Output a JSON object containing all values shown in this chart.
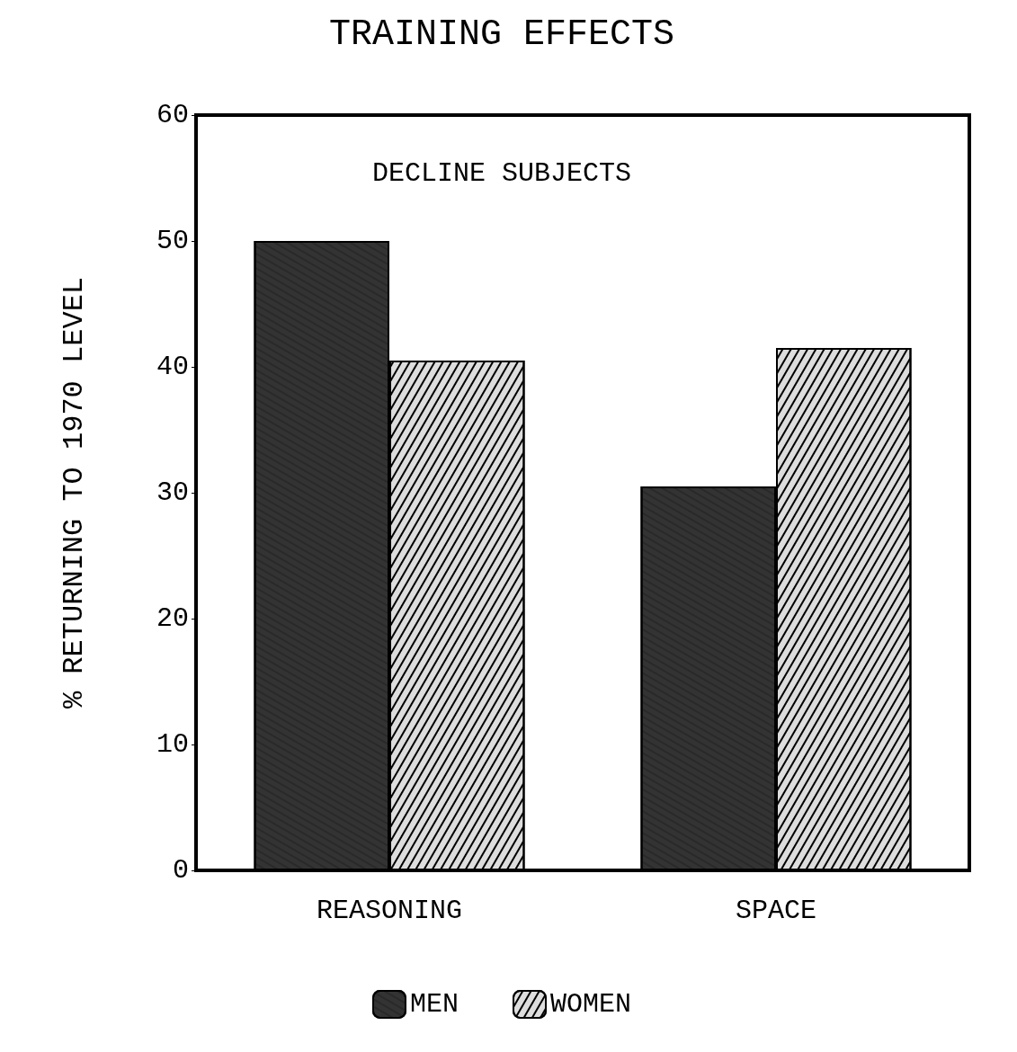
{
  "chart_data": {
    "type": "bar",
    "title": "TRAINING EFFECTS",
    "subtitle": "DECLINE SUBJECTS",
    "ylabel": "% RETURNING TO 1970 LEVEL",
    "categories": [
      "REASONING",
      "SPACE"
    ],
    "series": [
      {
        "name": "MEN",
        "color": "#333333",
        "values": [
          50,
          30.5
        ]
      },
      {
        "name": "WOMEN",
        "color": "#dddddd",
        "values": [
          40.5,
          41.5
        ]
      }
    ],
    "ylim": [
      0,
      60
    ],
    "yticks": [
      0,
      10,
      20,
      30,
      40,
      50,
      60
    ],
    "grid": false,
    "legend": "bottom"
  }
}
